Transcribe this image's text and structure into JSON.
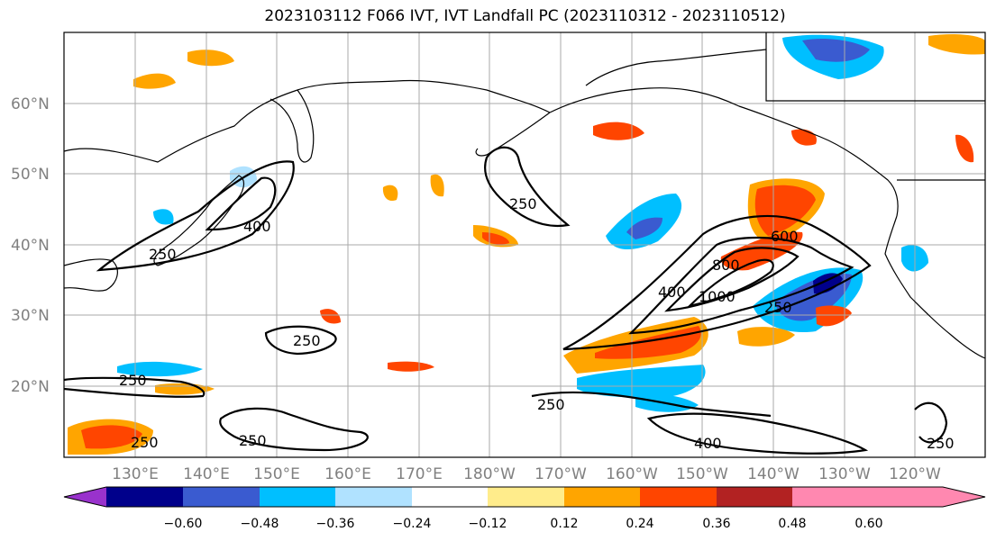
{
  "title": "2023103112 F066 IVT, IVT Landfall PC (2023110312 - 2023110512)",
  "lat_labels": [
    "60°N",
    "50°N",
    "40°N",
    "30°N",
    "20°N"
  ],
  "lon_labels": [
    "130°E",
    "140°E",
    "150°E",
    "160°E",
    "170°E",
    "180°W",
    "170°W",
    "160°W",
    "150°W",
    "140°W",
    "130°W",
    "120°W"
  ],
  "contour_labels": [
    "250",
    "400",
    "250",
    "250",
    "250",
    "400",
    "800",
    "1000",
    "600",
    "250",
    "250",
    "250",
    "400",
    "250",
    "250"
  ],
  "colorbar": {
    "ticks": [
      "−0.60",
      "−0.48",
      "−0.36",
      "−0.24",
      "−0.12",
      "0.12",
      "0.24",
      "0.36",
      "0.48",
      "0.60"
    ],
    "colors": [
      "#9932cc",
      "#00008b",
      "#3a5bd0",
      "#00bfff",
      "#b0e2ff",
      "#ffffff",
      "#ffec8b",
      "#ffa500",
      "#ff4500",
      "#b22222",
      "#ff88b0"
    ]
  },
  "fill_colors": {
    "pos1": "#ffec8b",
    "pos2": "#ffa500",
    "pos3": "#ff4500",
    "pos4": "#b22222",
    "neg1": "#b0e2ff",
    "neg2": "#00bfff",
    "neg3": "#3a5bd0",
    "neg4": "#00008b"
  }
}
